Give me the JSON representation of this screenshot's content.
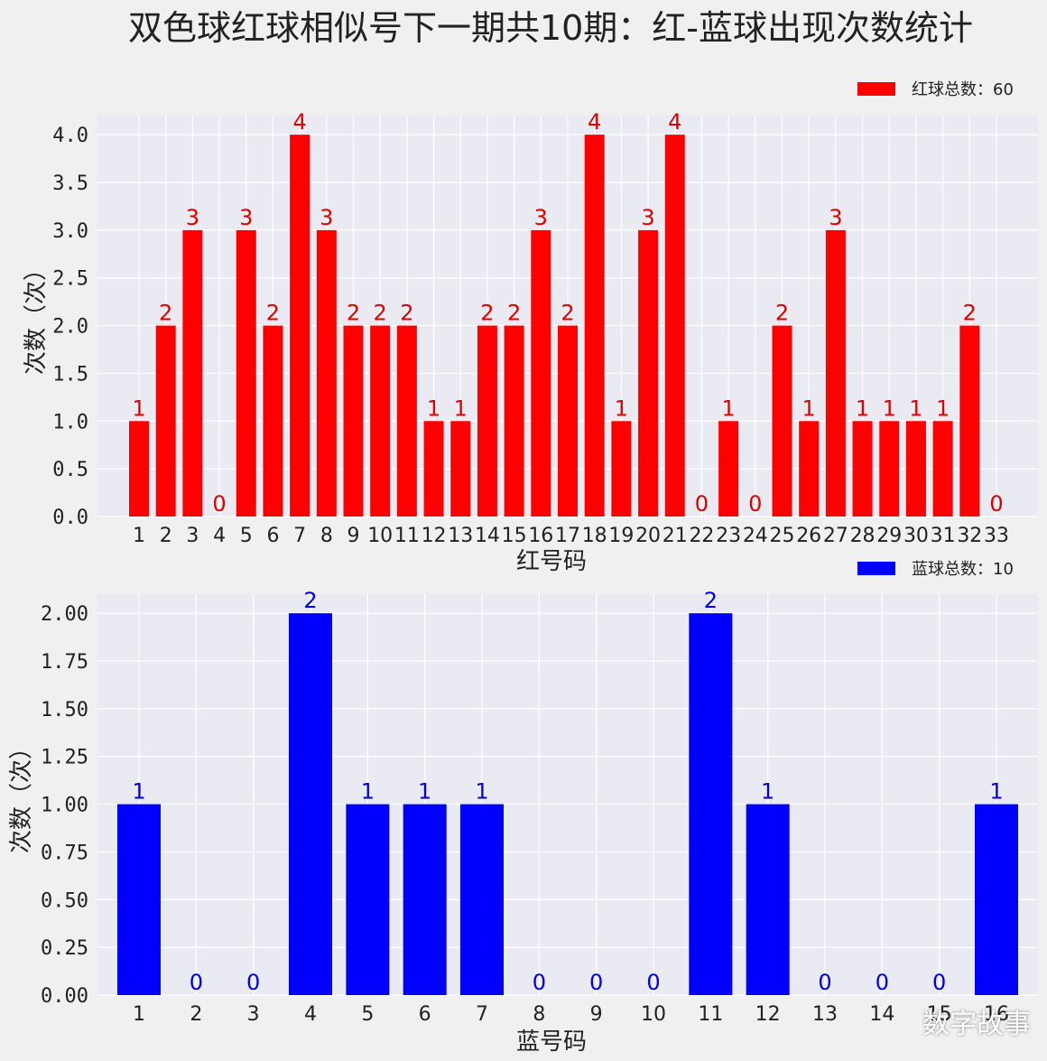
{
  "title": "双色球红球相似号下一期共10期：红-蓝球出现次数统计",
  "watermark": "数字故事",
  "chart_data": [
    {
      "type": "bar",
      "title": "",
      "xlabel": "红号码",
      "ylabel": "次数（次）",
      "ylim": [
        0,
        4.2
      ],
      "yticks": [
        "0.0",
        "0.5",
        "1.0",
        "1.5",
        "2.0",
        "2.5",
        "3.0",
        "3.5",
        "4.0"
      ],
      "grid": true,
      "legend": "红球总数：60",
      "legend_position": "top-right",
      "color": "#ff0000",
      "label_color": "#e00000",
      "categories": [
        "1",
        "2",
        "3",
        "4",
        "5",
        "6",
        "7",
        "8",
        "9",
        "10",
        "11",
        "12",
        "13",
        "14",
        "15",
        "16",
        "17",
        "18",
        "19",
        "20",
        "21",
        "22",
        "23",
        "24",
        "25",
        "26",
        "27",
        "28",
        "29",
        "30",
        "31",
        "32",
        "33"
      ],
      "values": [
        1,
        2,
        3,
        0,
        3,
        2,
        4,
        3,
        2,
        2,
        2,
        1,
        1,
        2,
        2,
        3,
        2,
        4,
        1,
        3,
        4,
        0,
        1,
        0,
        2,
        1,
        3,
        1,
        1,
        1,
        1,
        2,
        0
      ]
    },
    {
      "type": "bar",
      "title": "",
      "xlabel": "蓝号码",
      "ylabel": "次数（次）",
      "ylim": [
        0,
        2.1
      ],
      "yticks": [
        "0.00",
        "0.25",
        "0.50",
        "0.75",
        "1.00",
        "1.25",
        "1.50",
        "1.75",
        "2.00"
      ],
      "grid": true,
      "legend": "蓝球总数：10",
      "legend_position": "top-right",
      "color": "#0000ff",
      "label_color": "#0000e0",
      "categories": [
        "1",
        "2",
        "3",
        "4",
        "5",
        "6",
        "7",
        "8",
        "9",
        "10",
        "11",
        "12",
        "13",
        "14",
        "15",
        "16"
      ],
      "values": [
        1,
        0,
        0,
        2,
        1,
        1,
        1,
        0,
        0,
        0,
        2,
        1,
        0,
        0,
        0,
        1
      ]
    }
  ]
}
